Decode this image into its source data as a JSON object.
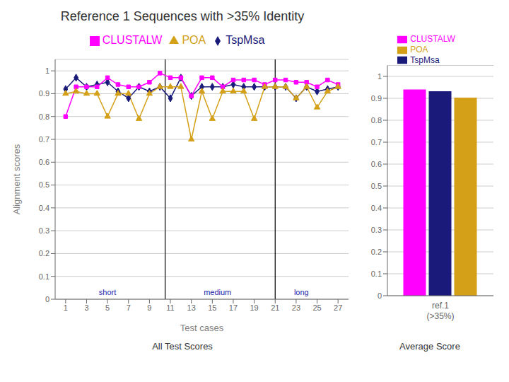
{
  "chart_data": [
    {
      "type": "line",
      "title": "Reference 1 Sequences with >35% Identity",
      "subtitle": "All Test Scores",
      "x_label": "Test cases",
      "y_label": "Alignment scores",
      "x": [
        1,
        2,
        3,
        4,
        5,
        6,
        7,
        8,
        9,
        10,
        11,
        12,
        13,
        14,
        15,
        16,
        17,
        18,
        19,
        20,
        21,
        22,
        23,
        24,
        25,
        26,
        27
      ],
      "series": [
        {
          "name": "TspMsa",
          "color": "#1a1a7a",
          "marker": "diamond",
          "values": [
            0.92,
            0.97,
            0.93,
            0.94,
            0.95,
            0.91,
            0.88,
            0.93,
            0.91,
            0.93,
            0.88,
            0.97,
            0.89,
            0.93,
            0.93,
            0.93,
            0.94,
            0.93,
            0.93,
            0.93,
            0.93,
            0.93,
            0.88,
            0.93,
            0.91,
            0.92,
            0.93
          ]
        },
        {
          "name": "CLUSTALW",
          "color": "#ff00ff",
          "marker": "square",
          "values": [
            0.8,
            0.93,
            0.93,
            0.93,
            0.97,
            0.94,
            0.93,
            0.93,
            0.95,
            0.99,
            0.97,
            0.97,
            0.89,
            0.97,
            0.97,
            0.93,
            0.96,
            0.96,
            0.96,
            0.94,
            0.96,
            0.96,
            0.95,
            0.95,
            0.93,
            0.96,
            0.94
          ]
        },
        {
          "name": "POA",
          "color": "#d4a017",
          "marker": "triangle",
          "values": [
            0.9,
            0.91,
            0.9,
            0.9,
            0.8,
            0.9,
            0.9,
            0.79,
            0.9,
            0.93,
            0.93,
            0.93,
            0.7,
            0.91,
            0.79,
            0.91,
            0.91,
            0.91,
            0.79,
            0.93,
            0.93,
            0.93,
            0.88,
            0.93,
            0.84,
            0.91,
            0.93
          ]
        }
      ],
      "xlim": [
        0,
        28
      ],
      "xticks": [
        1,
        3,
        5,
        7,
        9,
        11,
        13,
        15,
        17,
        19,
        21,
        23,
        25,
        27
      ],
      "ylim": [
        0,
        1.05
      ],
      "yticks": [
        0,
        0.1,
        0.2,
        0.3,
        0.4,
        0.5,
        0.6,
        0.7,
        0.8,
        0.9,
        1
      ],
      "vlines": [
        10.5,
        21.0
      ],
      "annotations": [
        {
          "text": "short",
          "x": 5.0
        },
        {
          "text": "medium",
          "x": 15.5
        },
        {
          "text": "long",
          "x": 23.5
        }
      ],
      "grid": true,
      "legend": "top"
    },
    {
      "type": "bar",
      "subtitle": "Average Score",
      "x_label": "ref.1\n(>35%)",
      "categories": [
        null
      ],
      "series": [
        {
          "name": "CLUSTALW",
          "color": "#ff00ff",
          "values": [
            0.94
          ]
        },
        {
          "name": "TspMsa",
          "color": "#1a1a7a",
          "values": [
            0.932
          ]
        },
        {
          "name": "POA",
          "color": "#d4a017",
          "values": [
            0.903
          ]
        }
      ],
      "ylim": [
        0,
        1.05
      ],
      "yticks": [
        0,
        0.1,
        0.2,
        0.3,
        0.4,
        0.5,
        0.6,
        0.7,
        0.8,
        0.9,
        1
      ],
      "grid": true,
      "legend": "top",
      "tick_labels": "y"
    }
  ]
}
